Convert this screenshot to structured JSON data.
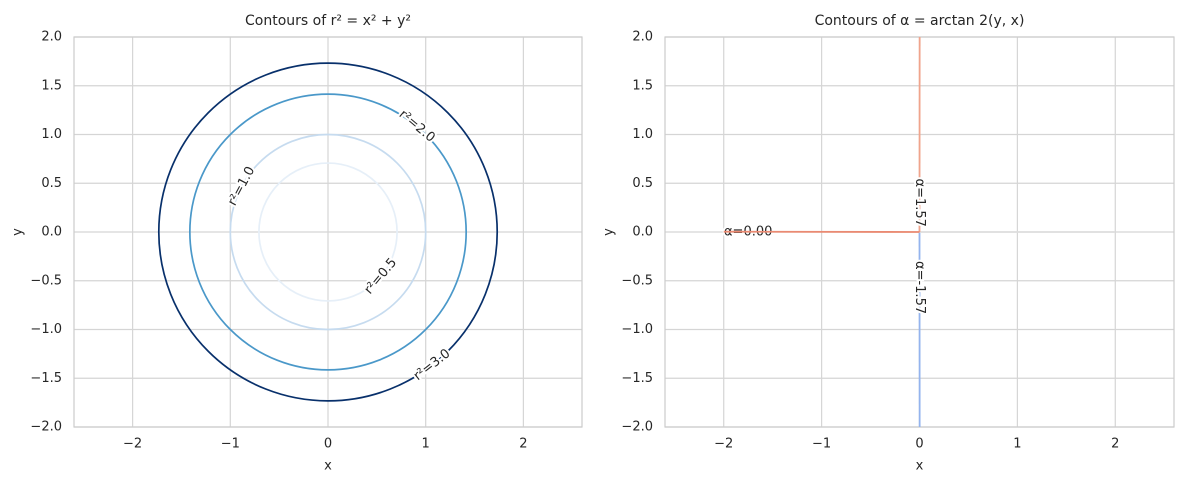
{
  "chart_data": [
    {
      "type": "contour-circle",
      "title": "Contours of r² = x² + y²",
      "xlabel": "x",
      "ylabel": "y",
      "xlim": [
        -2.6,
        2.6
      ],
      "ylim": [
        -2,
        2
      ],
      "xticks": [
        {
          "value": -2,
          "label": "−2"
        },
        {
          "value": -1,
          "label": "−1"
        },
        0,
        1,
        2
      ],
      "yticks": [
        {
          "value": -2,
          "label": "−2.0"
        },
        {
          "value": -1.5,
          "label": "−1.5"
        },
        {
          "value": -1,
          "label": "−1.0"
        },
        {
          "value": -0.5,
          "label": "−0.5"
        },
        {
          "value": 0,
          "label": "0.0"
        },
        0.5,
        {
          "value": 1,
          "label": "1.0"
        },
        1.5,
        {
          "value": 2,
          "label": "2.0"
        }
      ],
      "grid": true,
      "contours": [
        {
          "level": 0.5,
          "label": "r²=0.5",
          "color": "#e6eff8"
        },
        {
          "level": 1.0,
          "label": "r²=1.0",
          "color": "#c6dbef"
        },
        {
          "level": 2.0,
          "label": "r²=2.0",
          "color": "#4a98c9"
        },
        {
          "level": 3.0,
          "label": "r²=3.0",
          "color": "#08306b"
        }
      ]
    },
    {
      "type": "contour-ray",
      "title": "Contours of α = arctan 2(y, x)",
      "xlabel": "x",
      "ylabel": "y",
      "xlim": [
        -2.6,
        2.6
      ],
      "ylim": [
        -2,
        2
      ],
      "xticks": [
        {
          "value": -2,
          "label": "−2"
        },
        {
          "value": -1,
          "label": "−1"
        },
        0,
        1,
        2
      ],
      "yticks": [
        {
          "value": -2,
          "label": "−2.0"
        },
        {
          "value": -1.5,
          "label": "−1.5"
        },
        {
          "value": -1,
          "label": "−1.0"
        },
        {
          "value": -0.5,
          "label": "−0.5"
        },
        {
          "value": 0,
          "label": "0.0"
        },
        0.5,
        {
          "value": 1,
          "label": "1.0"
        },
        1.5,
        {
          "value": 2,
          "label": "2.0"
        }
      ],
      "grid": true,
      "contours": [
        {
          "level": -1.57,
          "label": "α=-1.57",
          "color": "#94b4ee"
        },
        {
          "level": 0.0,
          "label": "α=0.00",
          "color": "#dedede"
        },
        {
          "level": 1.57,
          "label": "α=1.57",
          "color": "#f0a48c"
        },
        {
          "level": 3.14,
          "color": "#ea8a72"
        }
      ]
    }
  ]
}
